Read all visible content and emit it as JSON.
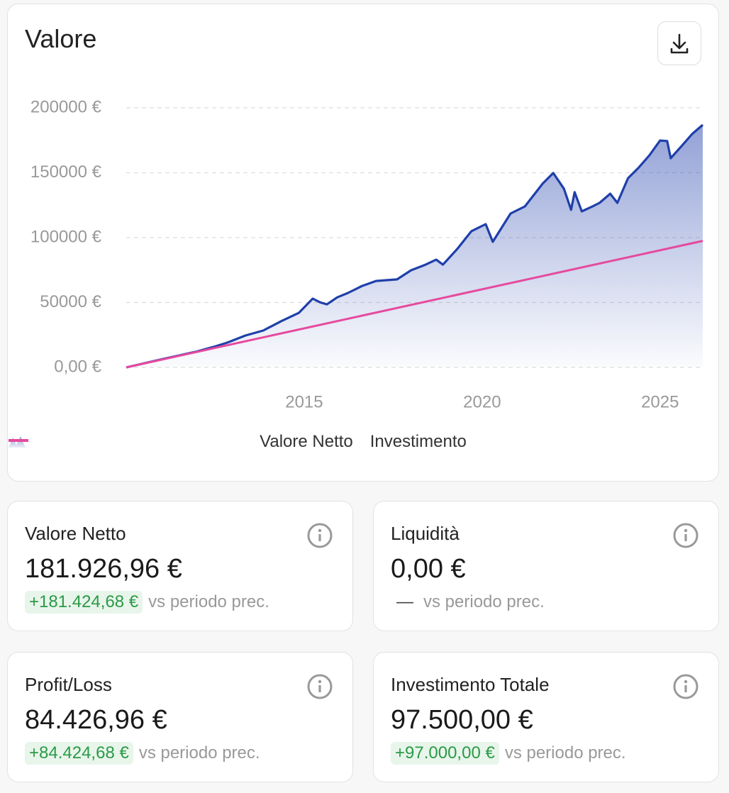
{
  "chart_data": {
    "type": "area",
    "title": "Valore",
    "xlim": [
      2010,
      2026.2
    ],
    "xticks": [
      2015,
      2020,
      2025
    ],
    "ylim": [
      0,
      200000
    ],
    "yticks": [
      {
        "value": 0,
        "label": "0,00 €"
      },
      {
        "value": 50000,
        "label": "50000 €"
      },
      {
        "value": 100000,
        "label": "100000 €"
      },
      {
        "value": 150000,
        "label": "150000 €"
      },
      {
        "value": 200000,
        "label": "200000 €"
      }
    ],
    "grid": true,
    "legend": "bottom",
    "series": [
      {
        "name": "Valore Netto",
        "color": "#1f3faa",
        "fill": true,
        "x": [
          2010.0,
          2011.05,
          2011.95,
          2012.45,
          2012.85,
          2013.35,
          2013.85,
          2014.35,
          2014.85,
          2015.24,
          2015.44,
          2015.64,
          2015.93,
          2016.23,
          2016.63,
          2017.02,
          2017.61,
          2018.0,
          2018.41,
          2018.71,
          2018.9,
          2019.3,
          2019.7,
          2020.1,
          2020.3,
          2020.8,
          2021.2,
          2021.7,
          2022.0,
          2022.3,
          2022.5,
          2022.6,
          2022.8,
          2023.1,
          2023.3,
          2023.6,
          2023.8,
          2024.1,
          2024.4,
          2024.7,
          2025.0,
          2025.2,
          2025.3,
          2025.6,
          2025.9,
          2026.2
        ],
        "values": [
          0,
          6600,
          12000,
          15800,
          19200,
          24600,
          28400,
          35600,
          42000,
          53000,
          50200,
          48600,
          54000,
          57400,
          62800,
          66600,
          67800,
          74800,
          79200,
          83000,
          79200,
          91200,
          105000,
          110400,
          96800,
          118600,
          124000,
          141600,
          149800,
          137600,
          121400,
          135000,
          120200,
          124000,
          126800,
          133800,
          126800,
          145800,
          154000,
          163400,
          174800,
          174400,
          161200,
          170400,
          179800,
          186900
        ]
      },
      {
        "name": "Investimento",
        "color": "#e6499e",
        "fill": false,
        "x": [
          2010.0,
          2026.2
        ],
        "values": [
          0,
          97500
        ]
      }
    ]
  },
  "cards": [
    {
      "title": "Valore Netto",
      "value": "181.926,96 €",
      "change": "+181.424,68 €",
      "note": "vs periodo prec."
    },
    {
      "title": "Liquidità",
      "value": "0,00 €",
      "change": "—",
      "note": "vs periodo prec."
    },
    {
      "title": "Profit/Loss",
      "value": "84.426,96 €",
      "change": "+84.424,68 €",
      "note": "vs periodo prec."
    },
    {
      "title": "Investimento Totale",
      "value": "97.500,00 €",
      "change": "+97.000,00 €",
      "note": "vs periodo prec."
    }
  ]
}
